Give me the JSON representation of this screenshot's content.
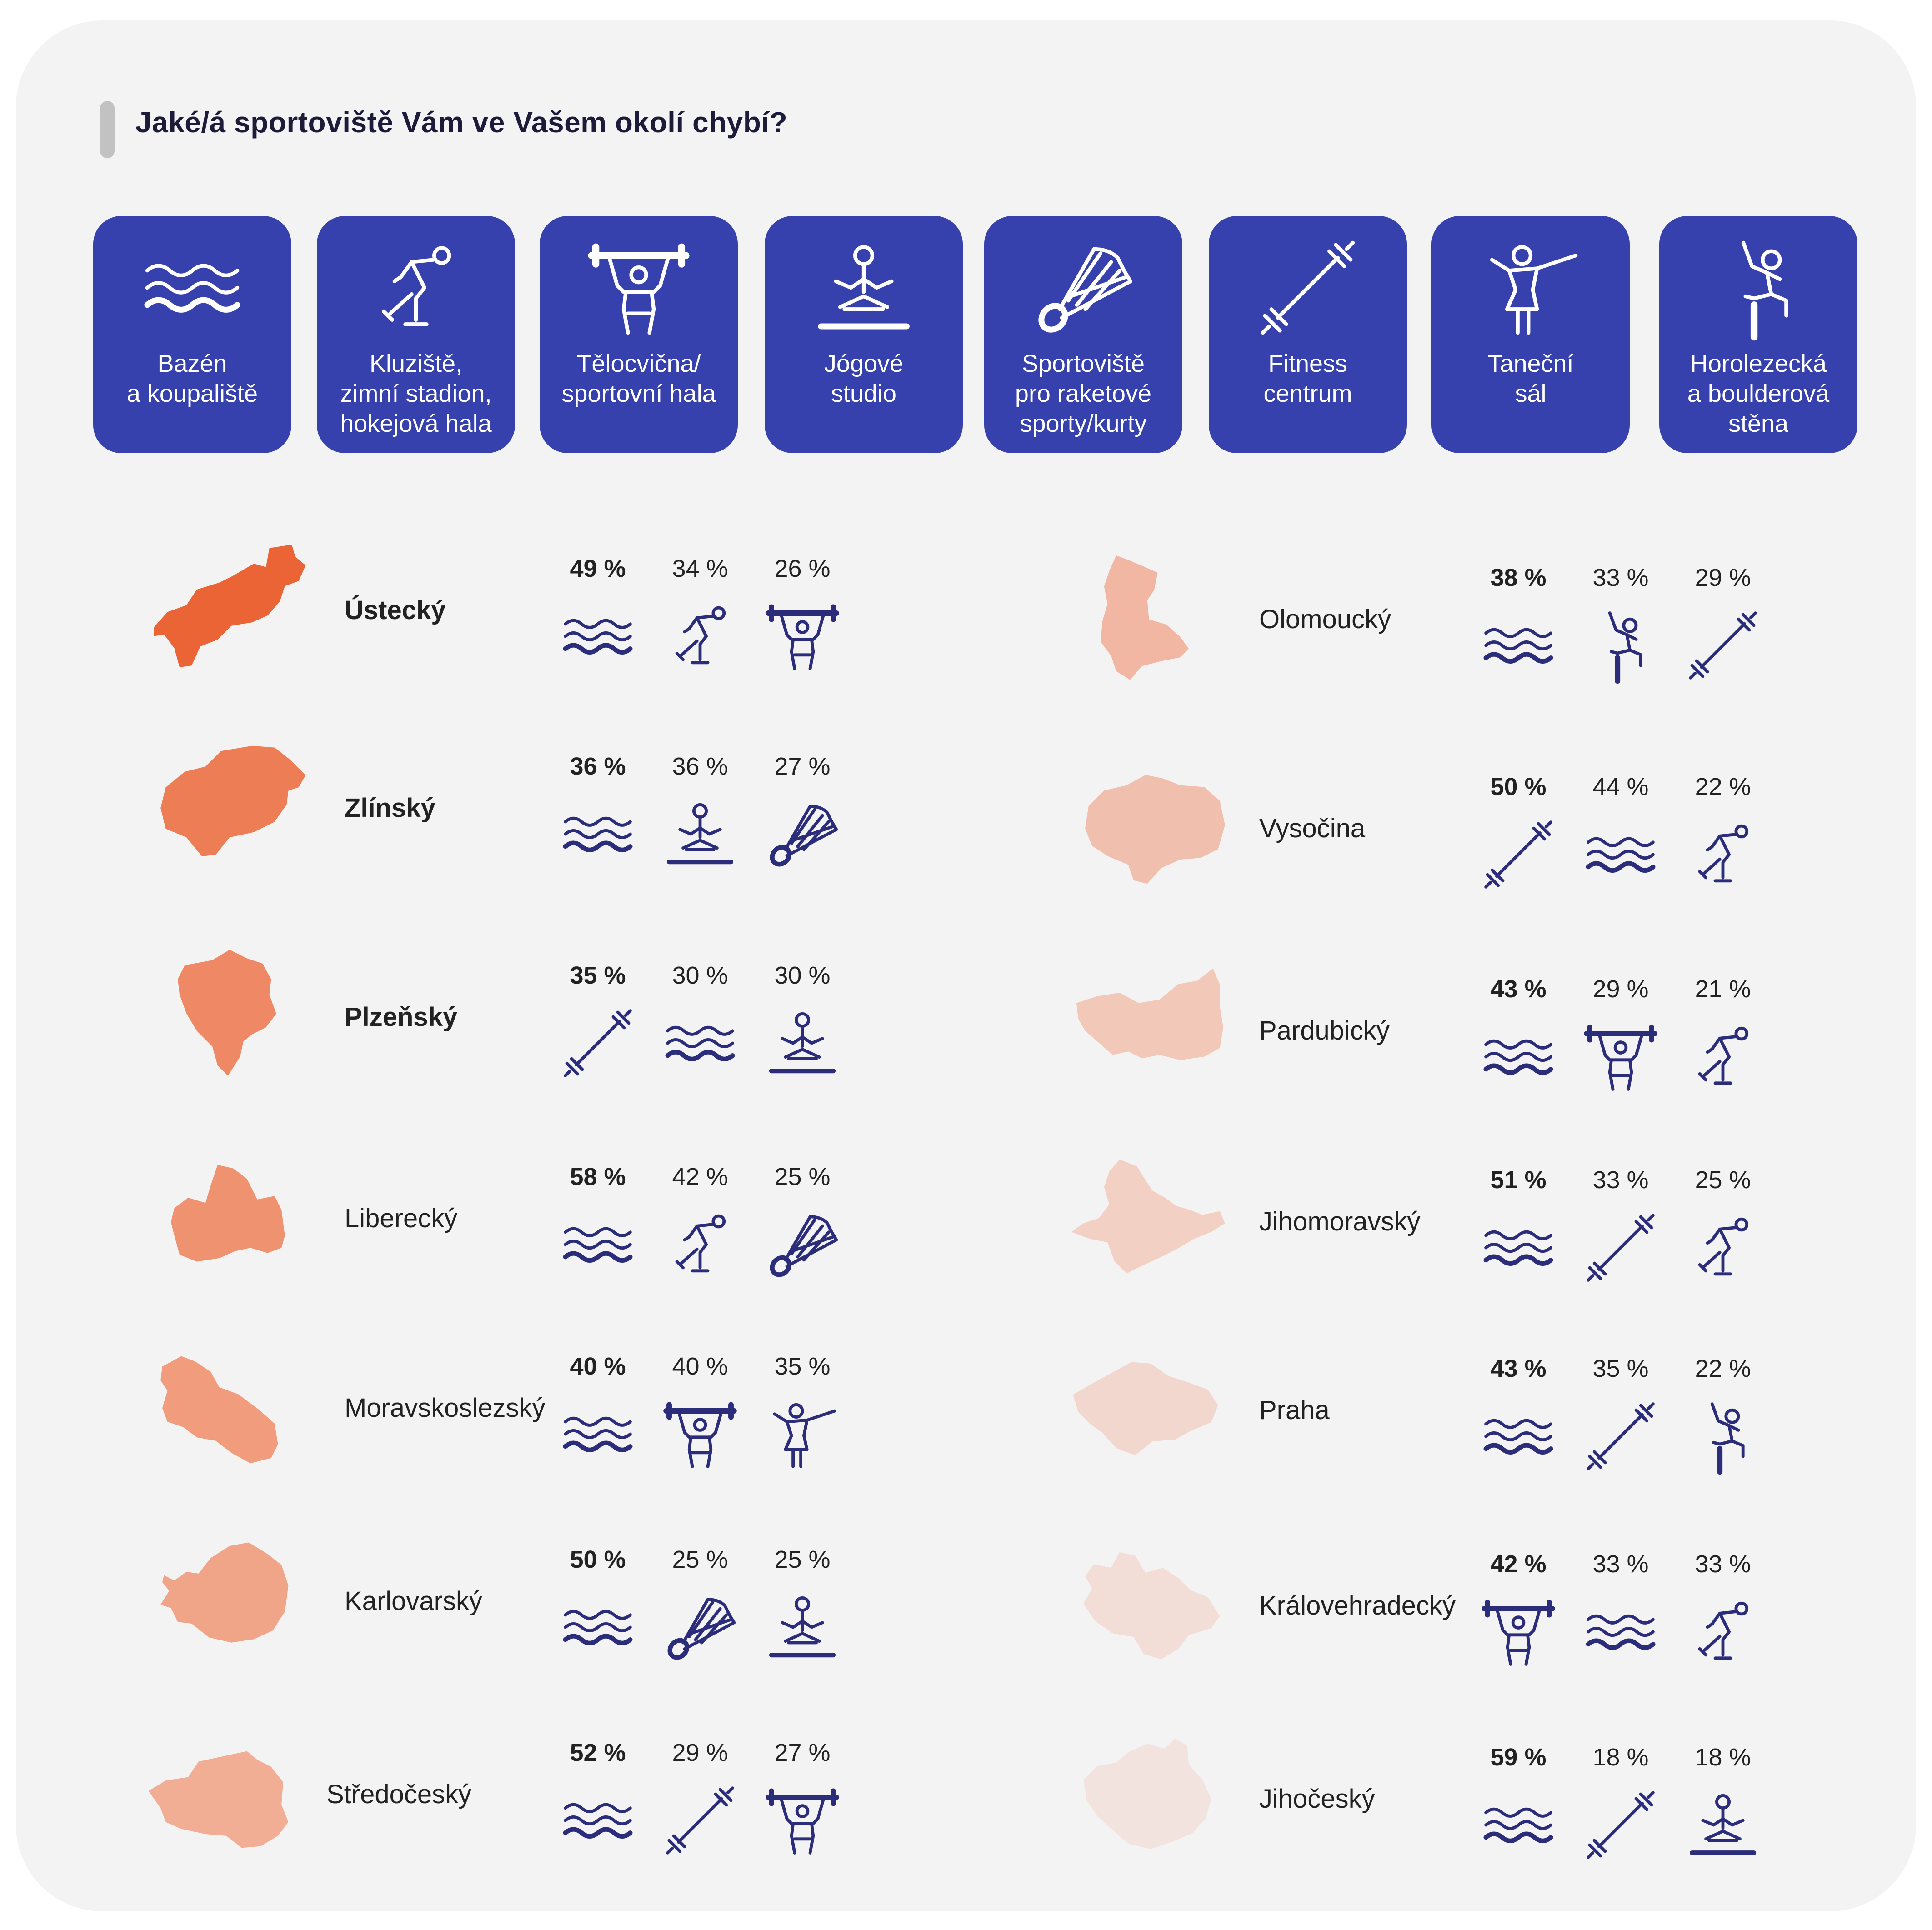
{
  "title": "Jaké/á sportoviště Vám ve Vašem okolí chybí?",
  "colors": {
    "tile": "#3641ad",
    "icon": "#2b2d7a",
    "icon_dark": "#1f1f5a"
  },
  "facilities": [
    {
      "key": "pool",
      "icon": "waves-icon",
      "lines": [
        "Bazén",
        "a koupaliště"
      ]
    },
    {
      "key": "ice",
      "icon": "skater-icon",
      "lines": [
        "Kluziště,",
        "zimní stadion,",
        "hokejová hala"
      ]
    },
    {
      "key": "gym",
      "icon": "weightlifter-icon",
      "lines": [
        "Tělocvična/",
        "sportovní hala"
      ]
    },
    {
      "key": "yoga",
      "icon": "yoga-icon",
      "lines": [
        "Jógové",
        "studio"
      ]
    },
    {
      "key": "racket",
      "icon": "shuttlecock-icon",
      "lines": [
        "Sportoviště",
        "pro raketové",
        "sporty/kurty"
      ]
    },
    {
      "key": "fitness",
      "icon": "dumbbell-icon",
      "lines": [
        "Fitness",
        "centrum"
      ]
    },
    {
      "key": "dance",
      "icon": "dancer-icon",
      "lines": [
        "Taneční",
        "sál"
      ]
    },
    {
      "key": "climb",
      "icon": "climber-icon",
      "lines": [
        "Horolezecká",
        "a boulderová",
        "stěna"
      ]
    }
  ],
  "regions": [
    {
      "name": "Ústecký",
      "bold": true,
      "color": "#ea6435",
      "items": [
        {
          "v": "49 %",
          "f": "pool"
        },
        {
          "v": "34 %",
          "f": "ice"
        },
        {
          "v": "26 %",
          "f": "gym"
        }
      ]
    },
    {
      "name": "Zlínský",
      "bold": true,
      "color": "#ed7d55",
      "items": [
        {
          "v": "36 %",
          "f": "pool"
        },
        {
          "v": "36 %",
          "f": "yoga"
        },
        {
          "v": "27 %",
          "f": "racket"
        }
      ]
    },
    {
      "name": "Plzeňský",
      "bold": true,
      "color": "#ee8865",
      "items": [
        {
          "v": "35 %",
          "f": "fitness"
        },
        {
          "v": "30 %",
          "f": "pool"
        },
        {
          "v": "30 %",
          "f": "yoga"
        }
      ]
    },
    {
      "name": "Liberecký",
      "bold": false,
      "color": "#ef9270",
      "items": [
        {
          "v": "58 %",
          "f": "pool"
        },
        {
          "v": "42 %",
          "f": "ice"
        },
        {
          "v": "25 %",
          "f": "racket"
        }
      ]
    },
    {
      "name": "Moravskoslezský",
      "bold": false,
      "color": "#f09c7d",
      "items": [
        {
          "v": "40 %",
          "f": "pool"
        },
        {
          "v": "40 %",
          "f": "gym"
        },
        {
          "v": "35 %",
          "f": "dance"
        }
      ]
    },
    {
      "name": "Karlovarský",
      "bold": false,
      "color": "#f0a589",
      "items": [
        {
          "v": "50 %",
          "f": "pool"
        },
        {
          "v": "25 %",
          "f": "racket"
        },
        {
          "v": "25 %",
          "f": "yoga"
        }
      ]
    },
    {
      "name": "Středočeský",
      "bold": false,
      "color": "#f1ae95",
      "items": [
        {
          "v": "52 %",
          "f": "pool"
        },
        {
          "v": "29 %",
          "f": "fitness"
        },
        {
          "v": "27 %",
          "f": "gym"
        }
      ]
    },
    {
      "name": "Olomoucký",
      "bold": false,
      "color": "#f1b7a2",
      "items": [
        {
          "v": "38 %",
          "f": "pool"
        },
        {
          "v": "33 %",
          "f": "climb"
        },
        {
          "v": "29 %",
          "f": "fitness"
        }
      ]
    },
    {
      "name": "Vysočina",
      "bold": false,
      "color": "#f1bfae",
      "items": [
        {
          "v": "50 %",
          "f": "fitness"
        },
        {
          "v": "44 %",
          "f": "pool"
        },
        {
          "v": "22 %",
          "f": "ice"
        }
      ]
    },
    {
      "name": "Pardubický",
      "bold": false,
      "color": "#f2c8b9",
      "items": [
        {
          "v": "43 %",
          "f": "pool"
        },
        {
          "v": "29 %",
          "f": "gym"
        },
        {
          "v": "21 %",
          "f": "ice"
        }
      ]
    },
    {
      "name": "Jihomoravský",
      "bold": false,
      "color": "#f2d0c4",
      "items": [
        {
          "v": "51 %",
          "f": "pool"
        },
        {
          "v": "33 %",
          "f": "fitness"
        },
        {
          "v": "25 %",
          "f": "ice"
        }
      ]
    },
    {
      "name": "Praha",
      "bold": false,
      "color": "#f2d7ce",
      "items": [
        {
          "v": "43 %",
          "f": "pool"
        },
        {
          "v": "35 %",
          "f": "fitness"
        },
        {
          "v": "22 %",
          "f": "climb"
        }
      ]
    },
    {
      "name": "Královehradecký",
      "bold": false,
      "color": "#f2ded7",
      "items": [
        {
          "v": "42 %",
          "f": "gym"
        },
        {
          "v": "33 %",
          "f": "pool"
        },
        {
          "v": "33 %",
          "f": "ice"
        }
      ]
    },
    {
      "name": "Jihočeský",
      "bold": false,
      "color": "#f2e3de",
      "items": [
        {
          "v": "59 %",
          "f": "pool"
        },
        {
          "v": "18 %",
          "f": "fitness"
        },
        {
          "v": "18 %",
          "f": "yoga"
        }
      ]
    }
  ]
}
